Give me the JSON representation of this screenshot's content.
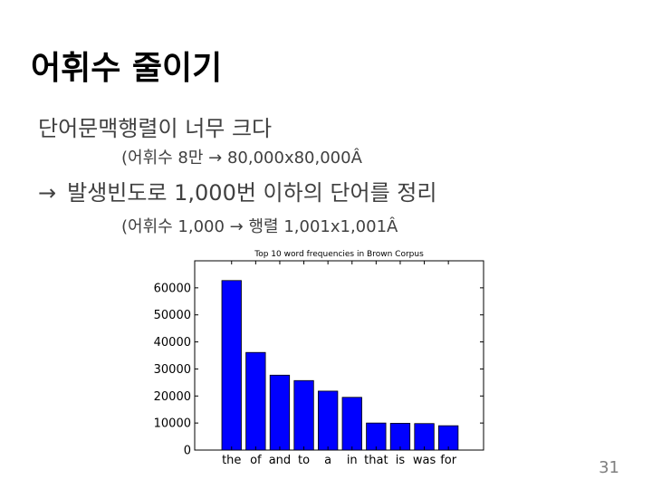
{
  "slide": {
    "title": "어휘수 줄이기",
    "line1": "단어문맥행렬이 너무 크다",
    "line2": "(어휘수 8만 → 80,000x80,000Â",
    "line3_arrow": "→",
    "line3": "발생빈도로 1,000번 이하의 단어를 정리",
    "line4": "(어휘수 1,000 → 행렬 1,001x1,001Â",
    "page_number": "31"
  },
  "chart_data": {
    "type": "bar",
    "title": "Top 10 word frequencies in Brown Corpus",
    "xlabel": "",
    "ylabel": "",
    "categories": [
      "the",
      "of",
      "and",
      "to",
      "a",
      "in",
      "that",
      "is",
      "was",
      "for"
    ],
    "values": [
      62700,
      36100,
      27700,
      25700,
      21800,
      19500,
      10000,
      9900,
      9800,
      9000
    ],
    "ylim": [
      0,
      70000
    ],
    "yticks": [
      0,
      10000,
      20000,
      30000,
      40000,
      50000,
      60000
    ],
    "bar_color": "#0000ff",
    "grid": false
  }
}
